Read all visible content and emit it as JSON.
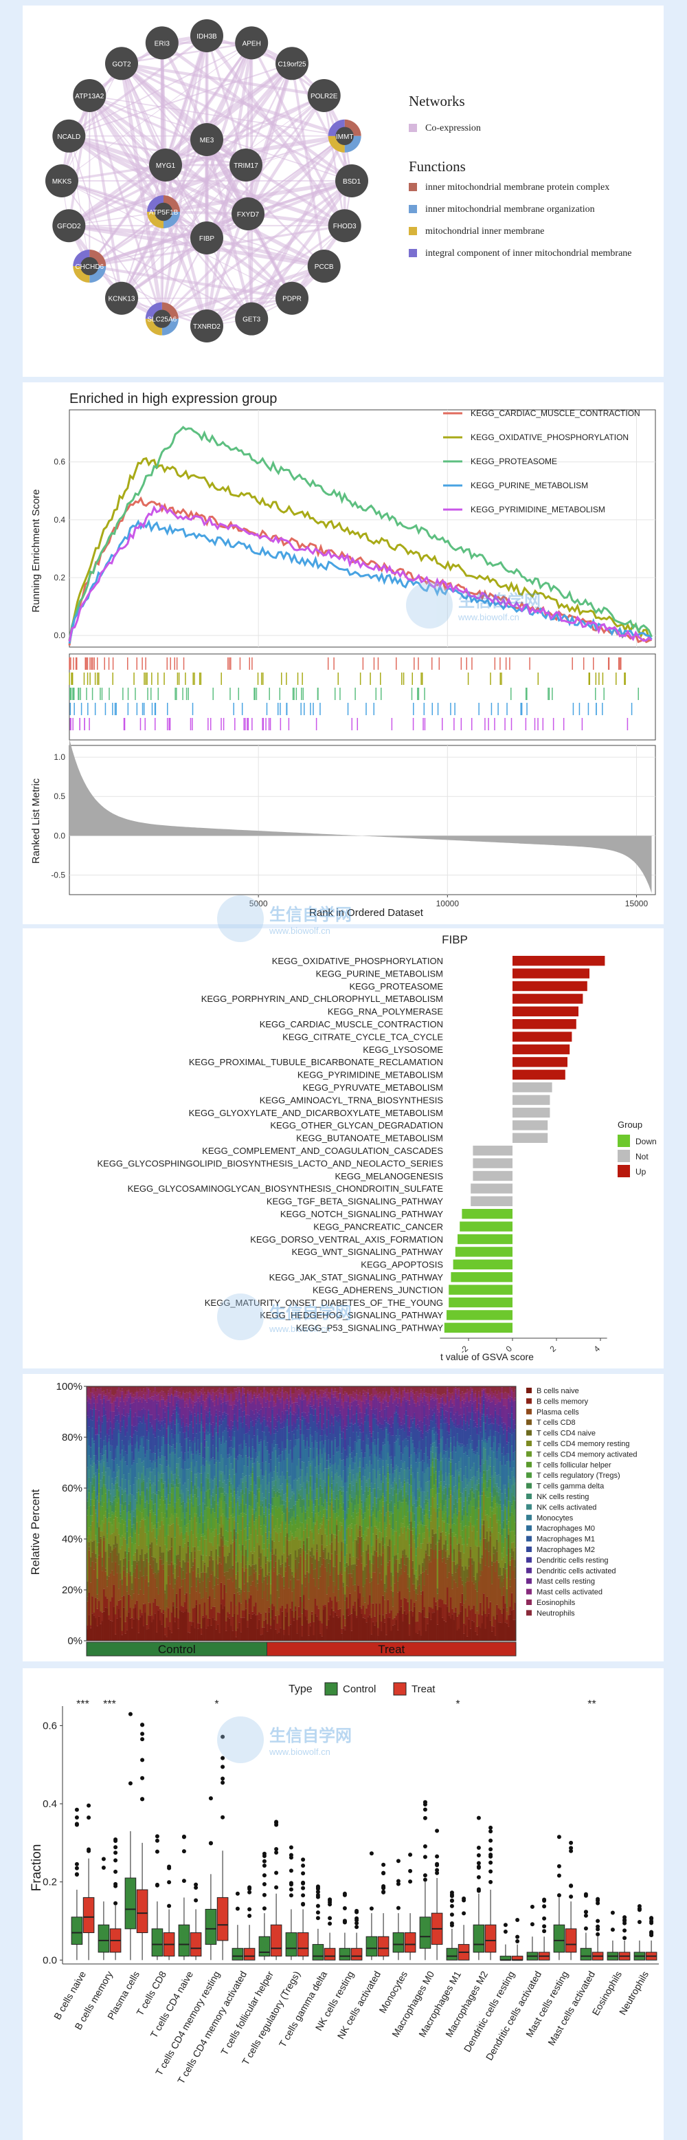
{
  "network": {
    "legend_networks_title": "Networks",
    "legend_networks": [
      {
        "label": "Co-expression",
        "color": "#d6b8dc"
      }
    ],
    "legend_functions_title": "Functions",
    "legend_functions": [
      {
        "label": "inner mitochondrial membrane protein complex",
        "color": "#b8685a"
      },
      {
        "label": "inner mitochondrial membrane organization",
        "color": "#6e9fd6"
      },
      {
        "label": "mitochondrial inner membrane",
        "color": "#d8b33a"
      },
      {
        "label": "integral component of inner mitochondrial membrane",
        "color": "#7a6fd0"
      }
    ],
    "outer_nodes": [
      "IDH3B",
      "APEH",
      "C19orf25",
      "POLR2E",
      "IMMT",
      "BSD1",
      "FHOD3",
      "PCCB",
      "PDPR",
      "GET3",
      "TXNRD2",
      "SLC25A6",
      "KCNK13",
      "CHCHD6",
      "GFOD2",
      "MKKS",
      "NCALD",
      "ATP13A2",
      "GOT2",
      "ERI3"
    ],
    "inner_nodes": [
      "ME3",
      "TRIM17",
      "FXYD7",
      "FIBP",
      "ATP5F1B",
      "MYG1"
    ],
    "multicolor_nodes": [
      "IMMT",
      "ATP5F1B",
      "CHCHD6",
      "SLC25A6"
    ]
  },
  "watermark": {
    "title": "生信自学网",
    "url": "www.biowolf.cn"
  },
  "gsea": {
    "chart_data": {
      "type": "line",
      "title": "Enriched in high expression group",
      "ylabel_top": "Running Enrichment Score",
      "ylabel_bottom": "Ranked List Metric",
      "xlabel": "Rank in Ordered Dataset",
      "xlim": [
        0,
        15500
      ],
      "ylim_top": [
        -0.04,
        0.78
      ],
      "ylim_bottom": [
        -0.75,
        1.15
      ],
      "x_ticks": [
        "5000",
        "10000",
        "15000"
      ],
      "y_ticks_top": [
        "0.0",
        "0.2",
        "0.4",
        "0.6"
      ],
      "y_ticks_bottom": [
        "-0.5",
        "0.0",
        "0.5",
        "1.0"
      ],
      "series": [
        {
          "name": "KEGG_CARDIAC_MUSCLE_CONTRACTION",
          "color": "#e06b5e",
          "peak_x": 1700,
          "peak_y": 0.47,
          "end_y": -0.02
        },
        {
          "name": "KEGG_OXIDATIVE_PHOSPHORYLATION",
          "color": "#a8aa17",
          "peak_x": 1900,
          "peak_y": 0.61,
          "end_y": 0.0
        },
        {
          "name": "KEGG_PROTEASOME",
          "color": "#5dbf80",
          "peak_x": 3000,
          "peak_y": 0.72,
          "end_y": 0.01
        },
        {
          "name": "KEGG_PURINE_METABOLISM",
          "color": "#48a3e2",
          "peak_x": 1800,
          "peak_y": 0.39,
          "end_y": -0.01
        },
        {
          "name": "KEGG_PYRIMIDINE_METABOLISM",
          "color": "#c957e8",
          "peak_x": 2300,
          "peak_y": 0.44,
          "end_y": -0.02
        }
      ]
    }
  },
  "gsva": {
    "chart_data": {
      "type": "bar",
      "title": "FIBP",
      "xlabel": "t value of GSVA score",
      "x_ticks": [
        "-2",
        "0",
        "2",
        "4"
      ],
      "xlim": [
        -3.4,
        4.4
      ],
      "legend_title": "Group",
      "groups": [
        {
          "name": "Down",
          "color": "#6dc82d"
        },
        {
          "name": "Not",
          "color": "#bdbdbd"
        },
        {
          "name": "Up",
          "color": "#b8180c"
        }
      ],
      "categories": [
        "KEGG_OXIDATIVE_PHOSPHORYLATION",
        "KEGG_PURINE_METABOLISM",
        "KEGG_PROTEASOME",
        "KEGG_PORPHYRIN_AND_CHLOROPHYLL_METABOLISM",
        "KEGG_RNA_POLYMERASE",
        "KEGG_CARDIAC_MUSCLE_CONTRACTION",
        "KEGG_CITRATE_CYCLE_TCA_CYCLE",
        "KEGG_LYSOSOME",
        "KEGG_PROXIMAL_TUBULE_BICARBONATE_RECLAMATION",
        "KEGG_PYRIMIDINE_METABOLISM",
        "KEGG_PYRUVATE_METABOLISM",
        "KEGG_AMINOACYL_TRNA_BIOSYNTHESIS",
        "KEGG_GLYOXYLATE_AND_DICARBOXYLATE_METABOLISM",
        "KEGG_OTHER_GLYCAN_DEGRADATION",
        "KEGG_BUTANOATE_METABOLISM",
        "KEGG_COMPLEMENT_AND_COAGULATION_CASCADES",
        "KEGG_GLYCOSPHINGOLIPID_BIOSYNTHESIS_LACTO_AND_NEOLACTO_SERIES",
        "KEGG_MELANOGENESIS",
        "KEGG_GLYCOSAMINOGLYCAN_BIOSYNTHESIS_CHONDROITIN_SULFATE",
        "KEGG_TGF_BETA_SIGNALING_PATHWAY",
        "KEGG_NOTCH_SIGNALING_PATHWAY",
        "KEGG_PANCREATIC_CANCER",
        "KEGG_DORSO_VENTRAL_AXIS_FORMATION",
        "KEGG_WNT_SIGNALING_PATHWAY",
        "KEGG_APOPTOSIS",
        "KEGG_JAK_STAT_SIGNALING_PATHWAY",
        "KEGG_ADHERENS_JUNCTION",
        "KEGG_MATURITY_ONSET_DIABETES_OF_THE_YOUNG",
        "KEGG_HEDGEHOG_SIGNALING_PATHWAY",
        "KEGG_P53_SIGNALING_PATHWAY"
      ],
      "values": [
        4.2,
        3.5,
        3.4,
        3.2,
        3.0,
        2.9,
        2.7,
        2.6,
        2.5,
        2.4,
        1.8,
        1.7,
        1.7,
        1.6,
        1.6,
        -1.8,
        -1.8,
        -1.8,
        -1.9,
        -1.9,
        -2.3,
        -2.4,
        -2.5,
        -2.6,
        -2.7,
        -2.8,
        -2.9,
        -2.9,
        -3.0,
        -3.1
      ],
      "group_of": [
        "Up",
        "Up",
        "Up",
        "Up",
        "Up",
        "Up",
        "Up",
        "Up",
        "Up",
        "Up",
        "Not",
        "Not",
        "Not",
        "Not",
        "Not",
        "Not",
        "Not",
        "Not",
        "Not",
        "Not",
        "Down",
        "Down",
        "Down",
        "Down",
        "Down",
        "Down",
        "Down",
        "Down",
        "Down",
        "Down"
      ]
    }
  },
  "stacked": {
    "chart_data": {
      "type": "bar",
      "ylabel": "Relative Percent",
      "y_ticks": [
        "0%",
        "20%",
        "40%",
        "60%",
        "80%",
        "100%"
      ],
      "ylim": [
        0,
        1
      ],
      "groups": [
        {
          "name": "Control",
          "color": "#2e7d3a",
          "fraction": 0.42
        },
        {
          "name": "Treat",
          "color": "#c0271b",
          "fraction": 0.58
        }
      ],
      "series": [
        {
          "name": "B cells naive",
          "color": "#7a1c12",
          "mean": 0.08
        },
        {
          "name": "B cells memory",
          "color": "#8a2418",
          "mean": 0.05
        },
        {
          "name": "Plasma cells",
          "color": "#8f4a1c",
          "mean": 0.13
        },
        {
          "name": "T cells CD8",
          "color": "#7d5a1d",
          "mean": 0.05
        },
        {
          "name": "T cells CD4 naive",
          "color": "#6d6a1f",
          "mean": 0.04
        },
        {
          "name": "T cells CD4 memory resting",
          "color": "#7d8a22",
          "mean": 0.09
        },
        {
          "name": "T cells CD4 memory activated",
          "color": "#6a9a2a",
          "mean": 0.03
        },
        {
          "name": "T cells follicular helper",
          "color": "#5a9a2c",
          "mean": 0.05
        },
        {
          "name": "T cells regulatory (Tregs)",
          "color": "#4e9a3e",
          "mean": 0.04
        },
        {
          "name": "T cells gamma delta",
          "color": "#3f8c52",
          "mean": 0.03
        },
        {
          "name": "NK cells resting",
          "color": "#3d8c70",
          "mean": 0.03
        },
        {
          "name": "NK cells activated",
          "color": "#3d8a86",
          "mean": 0.04
        },
        {
          "name": "Monocytes",
          "color": "#357e92",
          "mean": 0.05
        },
        {
          "name": "Macrophages M0",
          "color": "#2f6f9a",
          "mean": 0.07
        },
        {
          "name": "Macrophages M1",
          "color": "#2f5a9a",
          "mean": 0.03
        },
        {
          "name": "Macrophages M2",
          "color": "#34489a",
          "mean": 0.07
        },
        {
          "name": "Dendritic cells resting",
          "color": "#44389a",
          "mean": 0.02
        },
        {
          "name": "Dendritic cells activated",
          "color": "#5a2f94",
          "mean": 0.03
        },
        {
          "name": "Mast cells resting",
          "color": "#6e2a8c",
          "mean": 0.05
        },
        {
          "name": "Mast cells activated",
          "color": "#862a7c",
          "mean": 0.02
        },
        {
          "name": "Eosinophils",
          "color": "#8e2a5a",
          "mean": 0.02
        },
        {
          "name": "Neutrophils",
          "color": "#8a2a3a",
          "mean": 0.02
        }
      ]
    }
  },
  "boxplot": {
    "chart_data": {
      "type": "box",
      "legend_title": "Type",
      "ylabel": "Fraction",
      "y_ticks": [
        "0.0",
        "0.2",
        "0.4",
        "0.6"
      ],
      "ylim": [
        -0.01,
        0.65
      ],
      "groups": [
        {
          "name": "Control",
          "color": "#3a8a3c"
        },
        {
          "name": "Treat",
          "color": "#d83a2a"
        }
      ],
      "categories": [
        "B cells naive",
        "B cells memory",
        "Plasma cells",
        "T cells CD8",
        "T cells CD4 naive",
        "T cells CD4 memory resting",
        "T cells CD4 memory activated",
        "T cells follicular helper",
        "T cells regulatory (Tregs)",
        "T cells gamma delta",
        "NK cells resting",
        "NK cells activated",
        "Monocytes",
        "Macrophages M0",
        "Macrophages M1",
        "Macrophages M2",
        "Dendritic cells resting",
        "Dendritic cells activated",
        "Mast cells resting",
        "Mast cells activated",
        "Eosinophils",
        "Neutrophils"
      ],
      "significance": [
        "***",
        "***",
        "",
        "",
        "",
        "*",
        "",
        "",
        "",
        "",
        "",
        "",
        "",
        "",
        "*",
        "",
        "",
        "",
        "",
        "**",
        "",
        ""
      ],
      "control_stats": [
        [
          0,
          0.04,
          0.07,
          0.11,
          0.18
        ],
        [
          0,
          0.02,
          0.05,
          0.09,
          0.15
        ],
        [
          0,
          0.08,
          0.13,
          0.21,
          0.33
        ],
        [
          0,
          0.01,
          0.04,
          0.08,
          0.15
        ],
        [
          0,
          0.01,
          0.04,
          0.09,
          0.16
        ],
        [
          0,
          0.04,
          0.08,
          0.13,
          0.22
        ],
        [
          0,
          0,
          0.01,
          0.03,
          0.09
        ],
        [
          0,
          0.01,
          0.02,
          0.06,
          0.12
        ],
        [
          0,
          0.01,
          0.03,
          0.07,
          0.13
        ],
        [
          0,
          0,
          0.01,
          0.04,
          0.08
        ],
        [
          0,
          0,
          0.01,
          0.03,
          0.07
        ],
        [
          0,
          0.01,
          0.03,
          0.06,
          0.12
        ],
        [
          0,
          0.02,
          0.04,
          0.07,
          0.12
        ],
        [
          0,
          0.03,
          0.06,
          0.11,
          0.2
        ],
        [
          0,
          0,
          0.01,
          0.03,
          0.08
        ],
        [
          0,
          0.02,
          0.04,
          0.09,
          0.17
        ],
        [
          0,
          0,
          0,
          0.01,
          0.04
        ],
        [
          0,
          0,
          0.01,
          0.02,
          0.06
        ],
        [
          0,
          0.02,
          0.05,
          0.09,
          0.16
        ],
        [
          0,
          0,
          0.01,
          0.03,
          0.07
        ],
        [
          0,
          0,
          0.01,
          0.02,
          0.05
        ],
        [
          0,
          0,
          0.01,
          0.02,
          0.05
        ]
      ],
      "treat_stats": [
        [
          0,
          0.07,
          0.11,
          0.16,
          0.26
        ],
        [
          0,
          0.02,
          0.05,
          0.08,
          0.14
        ],
        [
          0,
          0.07,
          0.12,
          0.18,
          0.3
        ],
        [
          0,
          0.01,
          0.04,
          0.07,
          0.13
        ],
        [
          0,
          0.01,
          0.03,
          0.07,
          0.13
        ],
        [
          0,
          0.05,
          0.09,
          0.16,
          0.28
        ],
        [
          0,
          0,
          0.01,
          0.03,
          0.09
        ],
        [
          0,
          0.01,
          0.03,
          0.09,
          0.17
        ],
        [
          0,
          0.01,
          0.03,
          0.07,
          0.13
        ],
        [
          0,
          0,
          0.01,
          0.03,
          0.07
        ],
        [
          0,
          0,
          0.01,
          0.03,
          0.07
        ],
        [
          0,
          0.01,
          0.03,
          0.06,
          0.12
        ],
        [
          0,
          0.02,
          0.04,
          0.07,
          0.12
        ],
        [
          0,
          0.04,
          0.08,
          0.12,
          0.21
        ],
        [
          0,
          0,
          0.02,
          0.04,
          0.09
        ],
        [
          0,
          0.02,
          0.05,
          0.09,
          0.18
        ],
        [
          0,
          0,
          0,
          0.01,
          0.04
        ],
        [
          0,
          0,
          0.01,
          0.02,
          0.06
        ],
        [
          0,
          0.02,
          0.04,
          0.08,
          0.15
        ],
        [
          0,
          0,
          0.01,
          0.02,
          0.06
        ],
        [
          0,
          0,
          0.01,
          0.02,
          0.05
        ],
        [
          0,
          0,
          0.01,
          0.02,
          0.05
        ]
      ]
    }
  }
}
